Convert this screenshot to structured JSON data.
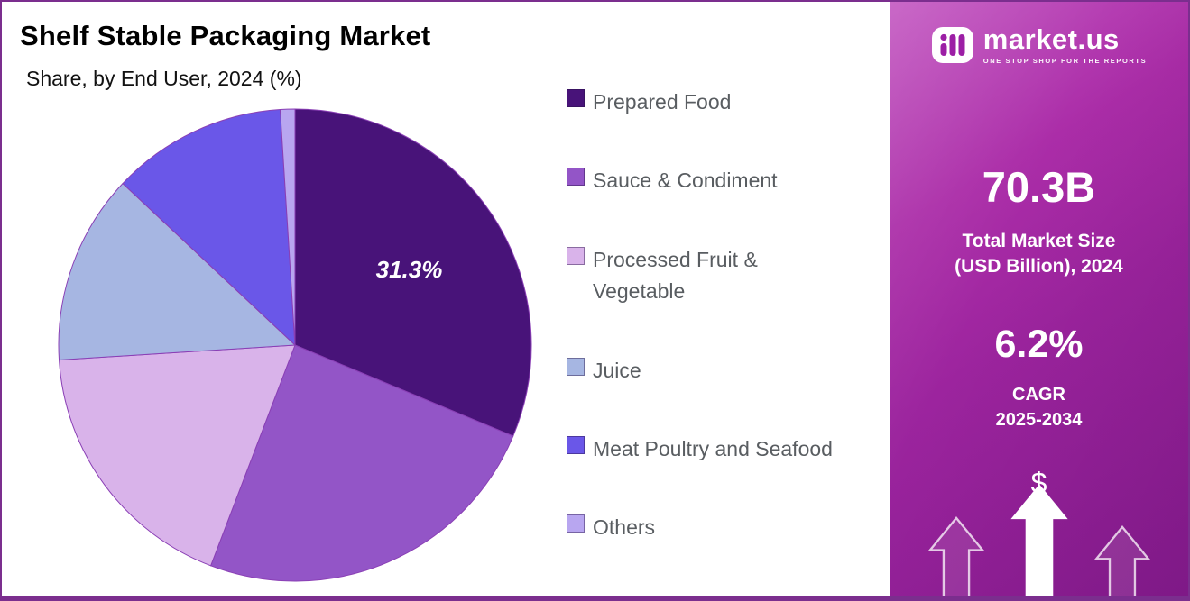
{
  "chart_data": {
    "type": "pie",
    "title": "Shelf Stable Packaging Market",
    "subtitle": "Share, by End User, 2024 (%)",
    "unit": "%",
    "legend_position": "right",
    "start_angle_deg": 0,
    "direction": "clockwise",
    "slices": [
      {
        "label": "Prepared Food",
        "value": 31.3,
        "color": "#481379",
        "data_label": "31.3%"
      },
      {
        "label": "Sauce & Condiment",
        "value": 24.5,
        "color": "#9355c7"
      },
      {
        "label": "Processed Fruit & Vegetable",
        "legend_label": "Processed Fruit &\nVegetable",
        "value": 18.2,
        "color": "#d9b3ea"
      },
      {
        "label": "Juice",
        "value": 13.0,
        "color": "#a6b6e2"
      },
      {
        "label": "Meat Poultry and Seafood",
        "value": 12.0,
        "color": "#6a57e8"
      },
      {
        "label": "Others",
        "value": 1.0,
        "color": "#b8a6f0"
      }
    ],
    "outline_color": "#8a3fb5"
  },
  "sidebar": {
    "brand": {
      "name": "market.us",
      "tagline": "ONE STOP SHOP FOR THE REPORTS"
    },
    "stats": [
      {
        "value": "70.3B",
        "label": "Total Market Size\n(USD Billion), 2024"
      },
      {
        "value": "6.2%",
        "label": "CAGR\n2025-2034"
      }
    ],
    "dollar_symbol": "$"
  }
}
